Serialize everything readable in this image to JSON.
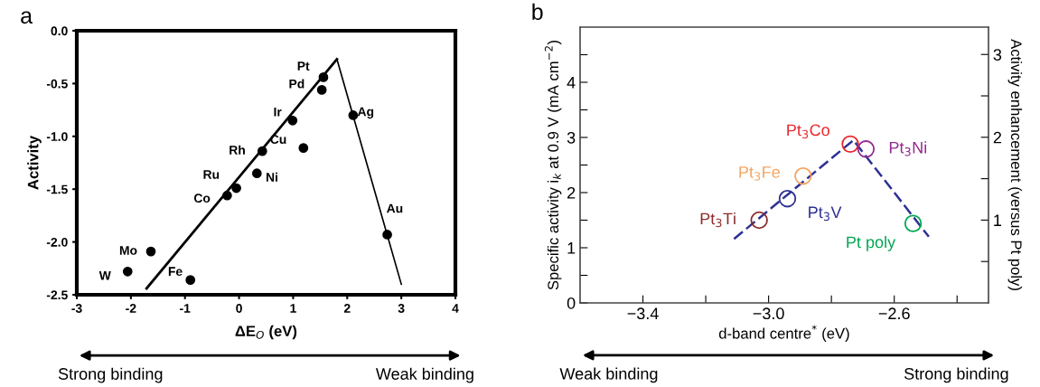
{
  "chart_data": [
    {
      "type": "scatter",
      "title": "a",
      "xlabel": "ΔE$_{O}$ (eV)",
      "ylabel": "Activity",
      "xlim": [
        -3,
        4
      ],
      "xticks": [
        -3,
        -2,
        -1,
        0,
        1,
        2,
        3,
        4
      ],
      "ylim": [
        -2.5,
        0
      ],
      "yticks": [
        {
          "value": -2.5,
          "label": "-2.5"
        },
        {
          "value": -2.0,
          "label": "-2.0"
        },
        {
          "value": -1.5,
          "label": "-1.5"
        },
        {
          "value": -1.0,
          "label": "-1.0"
        },
        {
          "value": -0.5,
          "label": "-0.5"
        },
        {
          "value": 0,
          "label": "0.0"
        }
      ],
      "grid": false,
      "series": [
        {
          "marker": "circle",
          "color": "#000000",
          "x": [
            -2.06,
            -1.63,
            -0.9,
            -0.22,
            -0.05,
            0.33,
            0.43,
            0.99,
            1.19,
            1.53,
            1.56,
            2.11,
            2.74
          ],
          "values": [
            -2.28,
            -2.09,
            -2.36,
            -1.56,
            -1.49,
            -1.35,
            -1.14,
            -0.85,
            -1.11,
            -0.56,
            -0.44,
            -0.8,
            -1.93
          ]
        },
        {
          "type": "line",
          "color": "#000000",
          "line_style": "solid",
          "x": [
            -1.71,
            1.81
          ],
          "values": [
            -2.44,
            -0.27
          ]
        },
        {
          "type": "line",
          "color": "#000000",
          "line_style": "solid",
          "x": [
            1.81,
            3.0
          ],
          "values": [
            -0.27,
            -2.4
          ]
        }
      ],
      "annotations": [
        {
          "text": "W",
          "x": -2.06,
          "y": -2.28
        },
        {
          "text": "Mo",
          "x": -1.63,
          "y": -2.09
        },
        {
          "text": "Fe",
          "x": -0.9,
          "y": -2.36
        },
        {
          "text": "Co",
          "x": -0.22,
          "y": -1.56
        },
        {
          "text": "Ru",
          "x": -0.05,
          "y": -1.49
        },
        {
          "text": "Ni",
          "x": 0.33,
          "y": -1.35
        },
        {
          "text": "Rh",
          "x": 0.43,
          "y": -1.14
        },
        {
          "text": "Ir",
          "x": 0.99,
          "y": -0.85
        },
        {
          "text": "Cu",
          "x": 1.19,
          "y": -1.11
        },
        {
          "text": "Pd",
          "x": 1.53,
          "y": -0.56
        },
        {
          "text": "Pt",
          "x": 1.56,
          "y": -0.44
        },
        {
          "text": "Ag",
          "x": 2.11,
          "y": -0.8
        },
        {
          "text": "Au",
          "x": 2.74,
          "y": -1.93
        },
        "Strong binding",
        "Weak binding"
      ]
    },
    {
      "type": "scatter",
      "title": "b",
      "xlabel": "d-band centre$^{*}$ (eV)",
      "ylabel": "Specific activity i$_{k}$ at 0.9 V (mA cm$^{−2}$)",
      "y2label": "Activity enhancement (versus Pt poly)",
      "xlim": [
        -3.6,
        -2.3
      ],
      "xticks": [
        {
          "value": -3.4,
          "label": "−3.4"
        },
        {
          "value": -3.2,
          "label": null
        },
        {
          "value": -3.0,
          "label": "−3.0"
        },
        {
          "value": -2.8,
          "label": null
        },
        {
          "value": -2.6,
          "label": "−2.6"
        },
        {
          "value": -2.4,
          "label": null
        }
      ],
      "ylim": [
        0,
        5
      ],
      "yticks": [
        0,
        {
          "value": 0.5,
          "label": null
        },
        1,
        {
          "value": 1.5,
          "label": null
        },
        2,
        {
          "value": 2.5,
          "label": null
        },
        3,
        {
          "value": 3.5,
          "label": null
        },
        4,
        {
          "value": 4.5,
          "label": null
        }
      ],
      "y2lim": [
        0,
        3.33
      ],
      "y2ticks": [
        {
          "value": 0.5,
          "label": null
        },
        1,
        {
          "value": 1.5,
          "label": null
        },
        2,
        {
          "value": 2.5,
          "label": null
        },
        3
      ],
      "grid": false,
      "series": [
        {
          "type": "line",
          "color": "#2e3192",
          "line_style": "dashed",
          "x": [
            -3.11,
            -2.73,
            -2.49
          ],
          "values": [
            1.16,
            2.95,
            1.2
          ]
        },
        {
          "marker": "circle",
          "name": "Pt$_{3}$Ti",
          "color": "#8b2a2a",
          "x": [
            -3.03
          ],
          "values": [
            1.5
          ]
        },
        {
          "marker": "circle",
          "name": "Pt$_{3}$V",
          "color": "#2e3192",
          "x": [
            -2.94
          ],
          "values": [
            1.89
          ]
        },
        {
          "marker": "circle",
          "name": "Pt$_{3}$Fe",
          "color": "#f4a460",
          "x": [
            -2.89
          ],
          "values": [
            2.3
          ]
        },
        {
          "marker": "circle",
          "name": "Pt$_{3}$Co",
          "color": "#e8262a",
          "x": [
            -2.74
          ],
          "values": [
            2.88
          ]
        },
        {
          "marker": "circle",
          "name": "Pt$_{3}$Ni",
          "color": "#92278f",
          "x": [
            -2.69
          ],
          "values": [
            2.79
          ]
        },
        {
          "marker": "circle",
          "name": "Pt poly",
          "color": "#00a651",
          "x": [
            -2.54
          ],
          "values": [
            1.44
          ]
        }
      ],
      "annotations": [
        "Weak binding",
        "Strong binding"
      ]
    }
  ]
}
